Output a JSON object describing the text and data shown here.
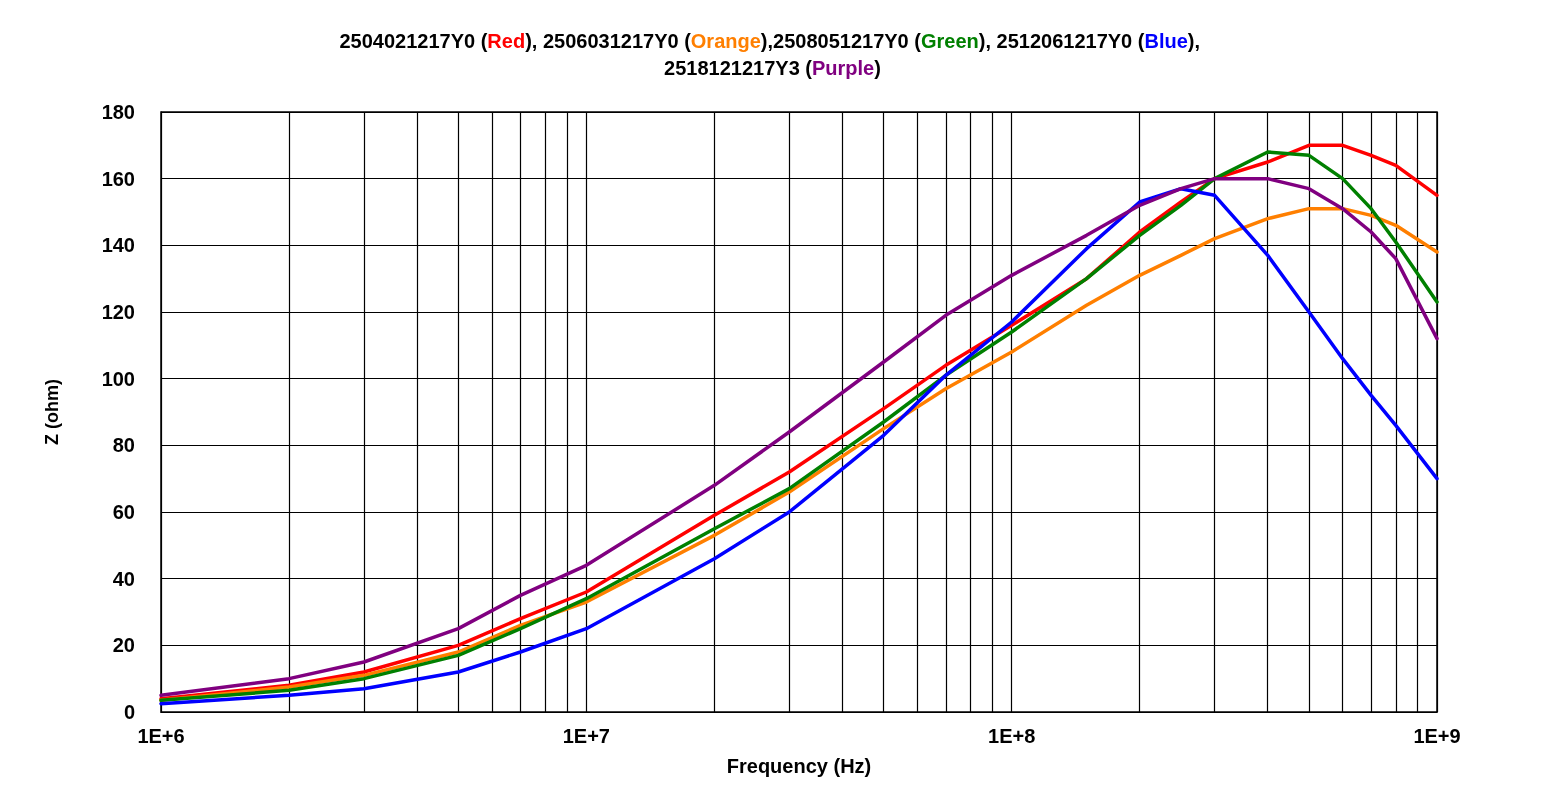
{
  "chart_data": {
    "type": "line",
    "title": "2504021217Y0 (Red), 2506031217Y0 (Orange),2508051217Y0 (Green), 2512061217Y0 (Blue), 2518121217Y3 (Purple)",
    "xlabel": "Frequency (Hz)",
    "ylabel": "Z (ohm)",
    "x": [
      1000000,
      2000000,
      3000000,
      5000000,
      7000000,
      10000000,
      20000000,
      30000000,
      50000000,
      70000000,
      100000000,
      150000000,
      200000000,
      250000000,
      300000000,
      400000000,
      500000000,
      600000000,
      700000000,
      800000000,
      1000000000
    ],
    "series": [
      {
        "color": "#ff0000",
        "values": [
          4,
          8,
          12,
          20,
          28,
          36,
          59,
          72,
          91,
          104,
          116,
          130,
          144,
          153,
          160,
          165,
          170,
          170,
          167,
          164,
          155
        ]
      },
      {
        "color": "#ff7f00",
        "values": [
          3.5,
          7.5,
          11,
          18,
          26,
          33,
          53,
          66,
          85,
          97,
          108,
          122,
          131,
          137,
          142,
          148,
          151,
          151,
          149,
          146,
          138
        ]
      },
      {
        "color": "#008000",
        "values": [
          3.5,
          6.5,
          10,
          17,
          25,
          34,
          55,
          67,
          87,
          101,
          114,
          130,
          143,
          152,
          160,
          168,
          167,
          160,
          151,
          141,
          123
        ]
      },
      {
        "color": "#0000ff",
        "values": [
          2.5,
          5,
          7,
          12,
          18,
          25,
          46,
          60,
          83,
          101,
          117,
          139,
          153,
          157,
          155,
          137,
          120,
          106,
          95,
          86,
          70
        ]
      },
      {
        "color": "#800080",
        "values": [
          5,
          10,
          15,
          25,
          35,
          44,
          68,
          84,
          105,
          119,
          131,
          143,
          152,
          157,
          160,
          160,
          157,
          151,
          144,
          136,
          112
        ]
      }
    ],
    "log": "x",
    "xlim": [
      1000000,
      1000000000
    ],
    "xticks": [
      {
        "value": 1000000,
        "label": "1E+6"
      },
      {
        "value": 2000000,
        "label": null
      },
      {
        "value": 3000000,
        "label": null
      },
      {
        "value": 4000000,
        "label": null
      },
      {
        "value": 5000000,
        "label": null
      },
      {
        "value": 6000000,
        "label": null
      },
      {
        "value": 7000000,
        "label": null
      },
      {
        "value": 8000000,
        "label": null
      },
      {
        "value": 9000000,
        "label": null
      },
      {
        "value": 10000000,
        "label": "1E+7"
      },
      {
        "value": 20000000,
        "label": null
      },
      {
        "value": 30000000,
        "label": null
      },
      {
        "value": 40000000,
        "label": null
      },
      {
        "value": 50000000,
        "label": null
      },
      {
        "value": 60000000,
        "label": null
      },
      {
        "value": 70000000,
        "label": null
      },
      {
        "value": 80000000,
        "label": null
      },
      {
        "value": 90000000,
        "label": null
      },
      {
        "value": 100000000,
        "label": "1E+8"
      },
      {
        "value": 200000000,
        "label": null
      },
      {
        "value": 300000000,
        "label": null
      },
      {
        "value": 400000000,
        "label": null
      },
      {
        "value": 500000000,
        "label": null
      },
      {
        "value": 600000000,
        "label": null
      },
      {
        "value": 700000000,
        "label": null
      },
      {
        "value": 800000000,
        "label": null
      },
      {
        "value": 900000000,
        "label": null
      },
      {
        "value": 1000000000,
        "label": "1E+9"
      }
    ],
    "ylim": [
      0,
      180
    ],
    "yticks": [
      0,
      20,
      40,
      60,
      80,
      100,
      120,
      140,
      160,
      180
    ],
    "grid": true,
    "marker": "none",
    "line_style": "solid"
  }
}
